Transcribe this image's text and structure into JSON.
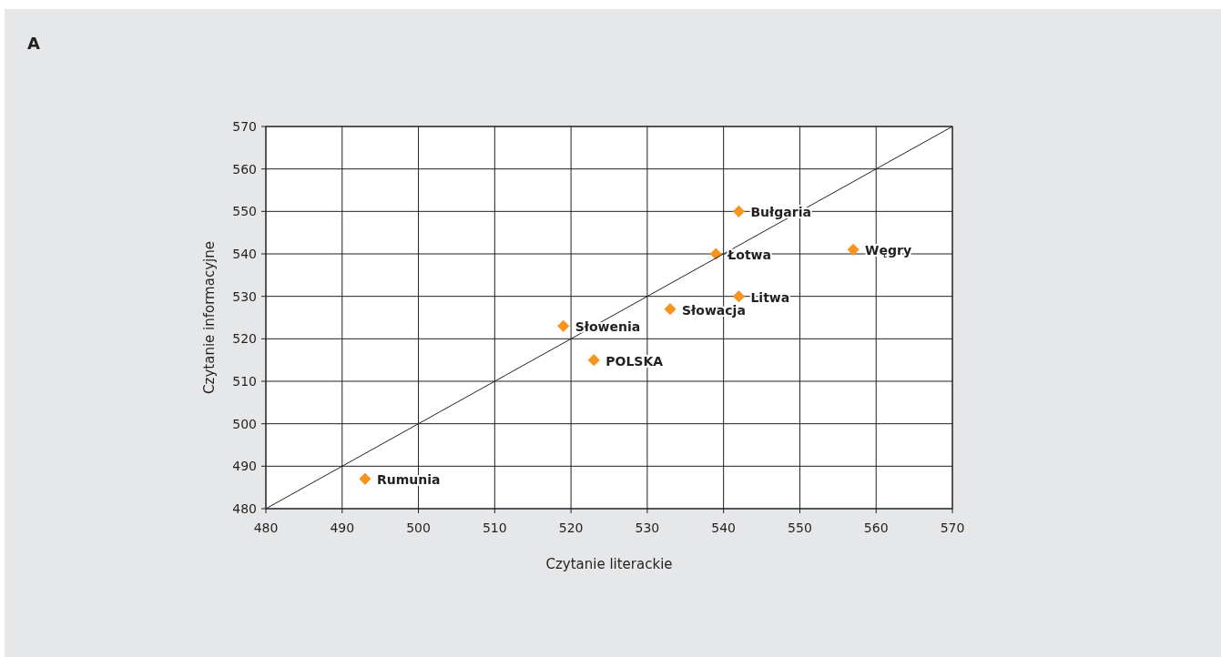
{
  "chart_data": {
    "type": "scatter",
    "title": "A",
    "xlabel": "Czytanie literackie",
    "ylabel": "Czytanie informacyjne",
    "x": [
      542,
      557,
      539,
      542,
      533,
      519,
      523,
      493
    ],
    "series": [
      {
        "type": "scatter",
        "color": "#f7941d",
        "marker": "diamond",
        "values": [
          550,
          541,
          540,
          530,
          527,
          523,
          515,
          487
        ]
      },
      {
        "type": "line",
        "color": "#231f20",
        "marker": "none",
        "line_style": "solid",
        "x": [
          480,
          570
        ],
        "values": [
          480,
          570
        ]
      }
    ],
    "annotations": [
      {
        "text": "Bułgaria",
        "x": 542,
        "y": 550
      },
      {
        "text": "Węgry",
        "x": 557,
        "y": 541
      },
      {
        "text": "Łotwa",
        "x": 539,
        "y": 540
      },
      {
        "text": "Litwa",
        "x": 542,
        "y": 530
      },
      {
        "text": "Słowacja",
        "x": 533,
        "y": 527
      },
      {
        "text": "Słowenia",
        "x": 519,
        "y": 523
      },
      {
        "text": "POLSKA",
        "x": 523,
        "y": 515
      },
      {
        "text": "Rumunia",
        "x": 493,
        "y": 487
      }
    ],
    "xlim": [
      480,
      570
    ],
    "ylim": [
      480,
      570
    ],
    "xticks": [
      480,
      490,
      500,
      510,
      520,
      530,
      540,
      550,
      560,
      570
    ],
    "yticks": [
      480,
      490,
      500,
      510,
      520,
      530,
      540,
      550,
      560,
      570
    ],
    "grid": true
  }
}
